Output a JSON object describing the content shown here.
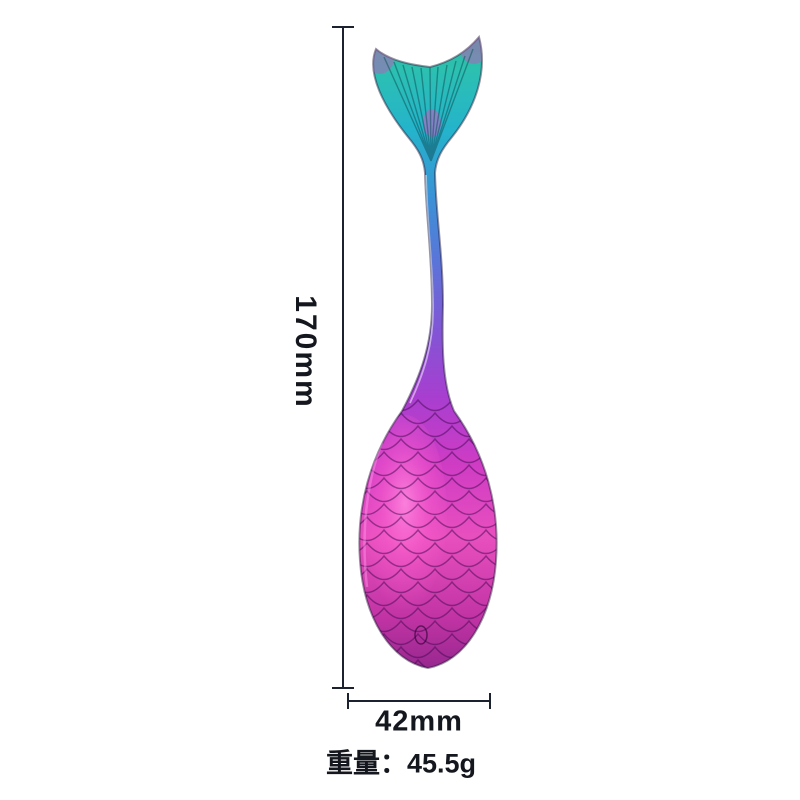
{
  "page": {
    "background": "#ffffff"
  },
  "annotations": {
    "line_color": "#1c2130",
    "text_color": "#15171e",
    "height": {
      "label": "170mm"
    },
    "width": {
      "label": "42mm"
    },
    "weight": {
      "label": "重量：45.5g"
    }
  },
  "product": {
    "name": "rainbow iridescent mermaid-tail spoon",
    "gradient_stops": [
      "#38b295",
      "#2cc0b0",
      "#24b4cb",
      "#3b92d6",
      "#5b74d8",
      "#8156d6",
      "#a83ed0",
      "#cf3cc4",
      "#e84fbe",
      "#c133a4",
      "#8a2488"
    ]
  }
}
